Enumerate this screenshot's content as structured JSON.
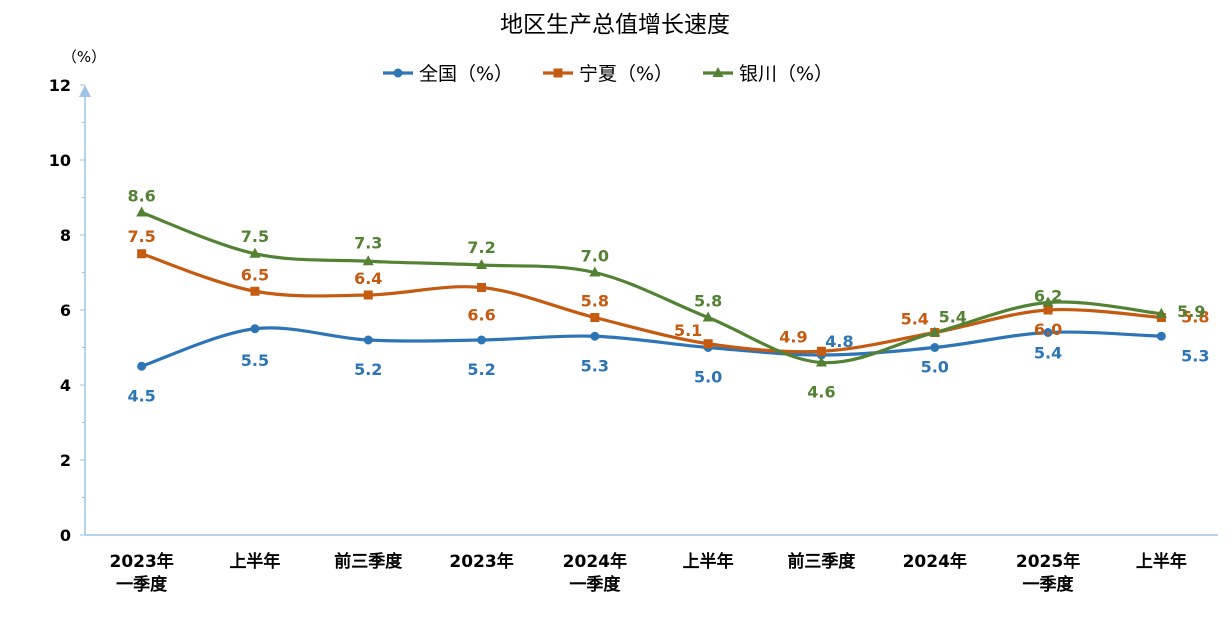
{
  "chart_data": {
    "type": "line",
    "title": "地区生产总值增长速度",
    "ylabel": "（%）",
    "ylim": [
      0,
      12
    ],
    "yticks": [
      0,
      2,
      4,
      6,
      8,
      10,
      12
    ],
    "smooth": true,
    "grid": false,
    "legend": "top",
    "categories": [
      [
        "2023年",
        "一季度"
      ],
      [
        "上半年"
      ],
      [
        "前三季度"
      ],
      [
        "2023年"
      ],
      [
        "2024年",
        "一季度"
      ],
      [
        "上半年"
      ],
      [
        "前三季度"
      ],
      [
        "2024年"
      ],
      [
        "2025年",
        "一季度"
      ],
      [
        "上半年"
      ]
    ],
    "series": [
      {
        "name": "全国（%）",
        "color": "#2e75b6",
        "marker": "circle",
        "values": [
          4.5,
          5.5,
          5.2,
          5.2,
          5.3,
          5.0,
          4.8,
          5.0,
          5.4,
          5.3
        ],
        "labels": [
          "4.5",
          "5.5",
          "5.2",
          "5.2",
          "5.3",
          "5.0",
          "4.8",
          "5.0",
          "5.4",
          "5.3"
        ]
      },
      {
        "name": "宁夏（%）",
        "color": "#c55a11",
        "marker": "square",
        "values": [
          7.5,
          6.5,
          6.4,
          6.6,
          5.8,
          5.1,
          4.9,
          5.4,
          6.0,
          5.8
        ],
        "labels": [
          "7.5",
          "6.5",
          "6.4",
          "6.6",
          "5.8",
          "5.1",
          "4.9",
          "5.4",
          "6.0",
          "5.8"
        ]
      },
      {
        "name": "银川（%）",
        "color": "#548235",
        "marker": "triangle",
        "values": [
          8.6,
          7.5,
          7.3,
          7.2,
          7.0,
          5.8,
          4.6,
          5.4,
          6.2,
          5.9
        ],
        "labels": [
          "8.6",
          "7.5",
          "7.3",
          "7.2",
          "7.0",
          "5.8",
          "4.6",
          "5.4",
          "6.2",
          "5.9"
        ]
      }
    ]
  }
}
